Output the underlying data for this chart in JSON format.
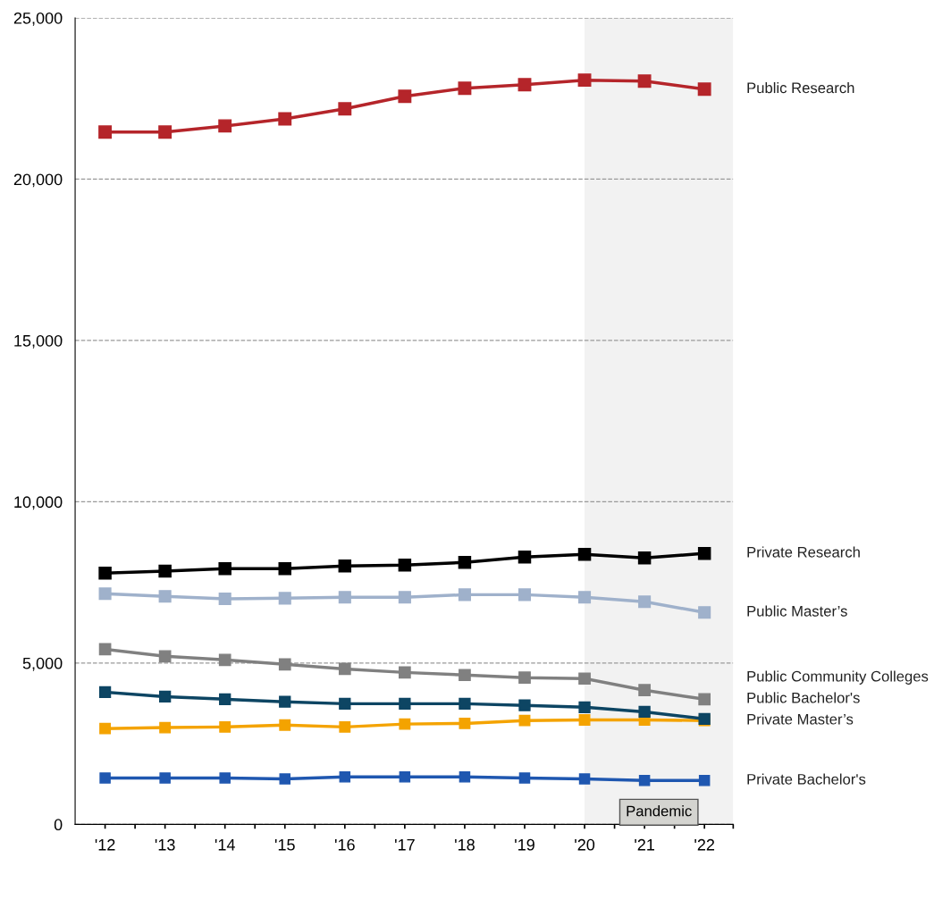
{
  "chart_data": {
    "type": "line",
    "x": [
      2012,
      2013,
      2014,
      2015,
      2016,
      2017,
      2018,
      2019,
      2020,
      2021,
      2022
    ],
    "series": [
      {
        "name": "Public Research",
        "color": "#b5252a",
        "values": [
          21460,
          21460,
          21650,
          21870,
          22180,
          22570,
          22820,
          22930,
          23070,
          23040,
          22790
        ]
      },
      {
        "name": "Private Research",
        "color": "#000000",
        "values": [
          7790,
          7850,
          7930,
          7930,
          8010,
          8040,
          8120,
          8290,
          8370,
          8260,
          8400
        ]
      },
      {
        "name": "Public Master’s",
        "color": "#9fb1cb",
        "values": [
          7150,
          7070,
          6990,
          7010,
          7040,
          7040,
          7120,
          7120,
          7040,
          6900,
          6570
        ]
      },
      {
        "name": "Public Community Colleges",
        "color": "#808080",
        "values": [
          5430,
          5210,
          5100,
          4960,
          4820,
          4710,
          4630,
          4550,
          4520,
          4160,
          3880
        ]
      },
      {
        "name": "Public Bachelor's",
        "color": "#0d4563",
        "values": [
          4100,
          3960,
          3880,
          3800,
          3740,
          3740,
          3740,
          3690,
          3630,
          3490,
          3270
        ]
      },
      {
        "name": "Private Master’s",
        "color": "#f4a300",
        "values": [
          2970,
          3000,
          3020,
          3080,
          3020,
          3110,
          3130,
          3220,
          3240,
          3240,
          3220
        ]
      },
      {
        "name": "Private Bachelor's",
        "color": "#1f57b0",
        "values": [
          1440,
          1440,
          1440,
          1410,
          1470,
          1470,
          1470,
          1440,
          1410,
          1360,
          1360
        ]
      }
    ],
    "xlim": [
      2011.5,
      2022.48
    ],
    "xticks": [
      {
        "value": 2012,
        "label": "'12"
      },
      {
        "value": 2012.5,
        "label": null
      },
      {
        "value": 2013,
        "label": "'13"
      },
      {
        "value": 2013.5,
        "label": null
      },
      {
        "value": 2014,
        "label": "'14"
      },
      {
        "value": 2014.5,
        "label": null
      },
      {
        "value": 2015,
        "label": "'15"
      },
      {
        "value": 2015.5,
        "label": null
      },
      {
        "value": 2016,
        "label": "'16"
      },
      {
        "value": 2016.5,
        "label": null
      },
      {
        "value": 2017,
        "label": "'17"
      },
      {
        "value": 2017.5,
        "label": null
      },
      {
        "value": 2018,
        "label": "'18"
      },
      {
        "value": 2018.5,
        "label": null
      },
      {
        "value": 2019,
        "label": "'19"
      },
      {
        "value": 2019.5,
        "label": null
      },
      {
        "value": 2020,
        "label": "'20"
      },
      {
        "value": 2020.5,
        "label": null
      },
      {
        "value": 2021,
        "label": "'21"
      },
      {
        "value": 2021.5,
        "label": null
      },
      {
        "value": 2022,
        "label": "'22"
      },
      {
        "value": 2022.48,
        "label": null
      }
    ],
    "ylim": [
      0,
      25000
    ],
    "yticks": [
      {
        "value": 0,
        "label": "0"
      },
      {
        "value": 5000,
        "label": "5,000"
      },
      {
        "value": 10000,
        "label": "10,000"
      },
      {
        "value": 15000,
        "label": "15,000"
      },
      {
        "value": 20000,
        "label": "20,000"
      },
      {
        "value": 25000,
        "label": "25,000"
      }
    ],
    "grid": "y",
    "marker": "square",
    "line_style": "solid",
    "legend": false,
    "bands": [
      {
        "axis": "x",
        "from": 2020,
        "to": 2022.48,
        "label": "Pandemic",
        "color": "#f2f2f2"
      }
    ]
  }
}
